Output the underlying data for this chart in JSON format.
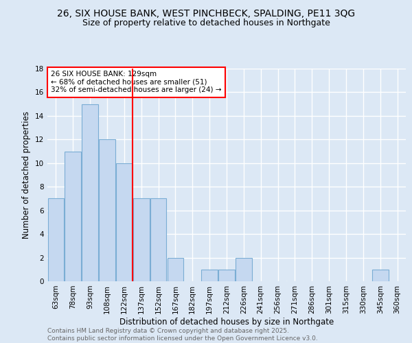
{
  "title1": "26, SIX HOUSE BANK, WEST PINCHBECK, SPALDING, PE11 3QG",
  "title2": "Size of property relative to detached houses in Northgate",
  "xlabel": "Distribution of detached houses by size in Northgate",
  "ylabel": "Number of detached properties",
  "footnote1": "Contains HM Land Registry data © Crown copyright and database right 2025.",
  "footnote2": "Contains public sector information licensed under the Open Government Licence v3.0.",
  "bin_labels": [
    "63sqm",
    "78sqm",
    "93sqm",
    "108sqm",
    "122sqm",
    "137sqm",
    "152sqm",
    "167sqm",
    "182sqm",
    "197sqm",
    "212sqm",
    "226sqm",
    "241sqm",
    "256sqm",
    "271sqm",
    "286sqm",
    "301sqm",
    "315sqm",
    "330sqm",
    "345sqm",
    "360sqm"
  ],
  "bin_values": [
    7,
    11,
    15,
    12,
    10,
    7,
    7,
    2,
    0,
    1,
    1,
    2,
    0,
    0,
    0,
    0,
    0,
    0,
    0,
    1,
    0
  ],
  "bar_color": "#c5d8f0",
  "bar_edge_color": "#7aadd4",
  "vline_x_index": 4.5,
  "vline_color": "red",
  "annotation_text": "26 SIX HOUSE BANK: 129sqm\n← 68% of detached houses are smaller (51)\n32% of semi-detached houses are larger (24) →",
  "annotation_box_facecolor": "white",
  "annotation_box_edgecolor": "red",
  "ylim": [
    0,
    18
  ],
  "background_color": "#dce8f5",
  "grid_color": "white",
  "title_fontsize": 10,
  "subtitle_fontsize": 9,
  "axis_label_fontsize": 8.5,
  "tick_fontsize": 7.5,
  "annotation_fontsize": 7.5,
  "footnote_fontsize": 6.5,
  "footnote_color": "#666666"
}
